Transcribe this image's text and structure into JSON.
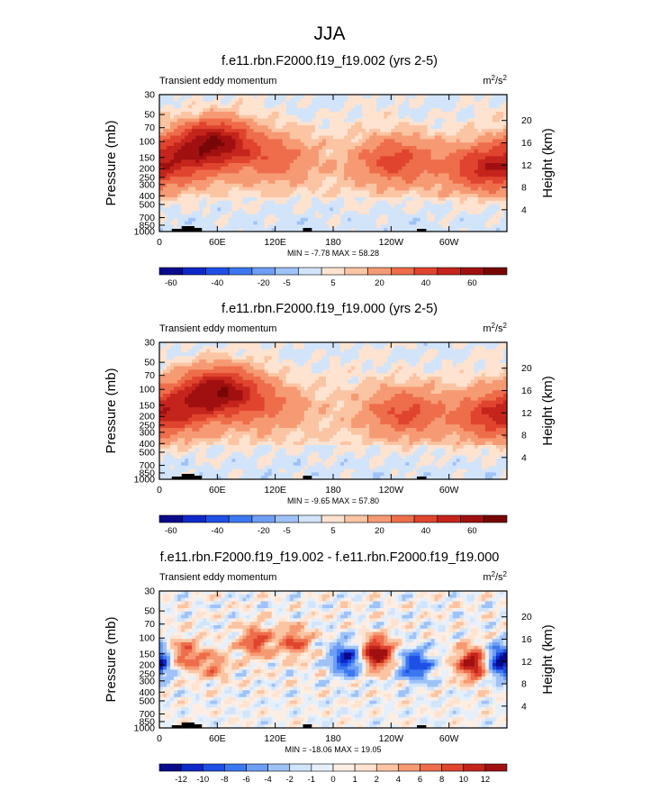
{
  "figure_title": "JJA",
  "chart_data": [
    {
      "type": "heatmap",
      "title": "f.e11.rbn.F2000.f19_f19.002 (yrs 2-5)",
      "subtitle_left": "Transient eddy momentum",
      "units": "m²/s²",
      "units_base": "m",
      "units_exp1": "2",
      "units_mid": "/s",
      "units_exp2": "2",
      "ylabel": "Pressure (mb)",
      "ylabel_right": "Height (km)",
      "x_ticks": [
        "0",
        "60E",
        "120E",
        "180",
        "120W",
        "60W"
      ],
      "y_ticks": [
        "30",
        "50",
        "70",
        "100",
        "150",
        "200",
        "250",
        "300",
        "400",
        "500",
        "700",
        "850",
        "1000"
      ],
      "y_ticks_right": [
        "20",
        "16",
        "12",
        "8",
        "4"
      ],
      "stats": "MIN =  -7.78  MAX =  58.28",
      "min": -7.78,
      "max": 58.28,
      "colorbar_labels": [
        "-60",
        "-40",
        "-20",
        "-5",
        "5",
        "20",
        "40",
        "60"
      ],
      "colorbar_colors": [
        "#0a0a8c",
        "#0f28c8",
        "#1e50e6",
        "#3c78f0",
        "#6e9ef5",
        "#9fc2f7",
        "#d2e4fa",
        "#fde3d0",
        "#fbc4a2",
        "#f69a74",
        "#ee6d4a",
        "#e0442e",
        "#c4241c",
        "#a01010",
        "#780606"
      ],
      "features": [
        {
          "lon": 20,
          "p": 160,
          "val": 26
        },
        {
          "lon": 58,
          "p": 100,
          "val": 52
        },
        {
          "lon": 120,
          "p": 150,
          "val": 20
        },
        {
          "lon": 245,
          "p": 160,
          "val": 30
        },
        {
          "lon": 336,
          "p": 200,
          "val": 34
        }
      ]
    },
    {
      "type": "heatmap",
      "title": "f.e11.rbn.F2000.f19_f19.000 (yrs 2-5)",
      "subtitle_left": "Transient eddy momentum",
      "units": "m²/s²",
      "units_base": "m",
      "units_exp1": "2",
      "units_mid": "/s",
      "units_exp2": "2",
      "ylabel": "Pressure (mb)",
      "ylabel_right": "Height (km)",
      "x_ticks": [
        "0",
        "60E",
        "120E",
        "180",
        "120W",
        "60W"
      ],
      "y_ticks": [
        "30",
        "50",
        "70",
        "100",
        "150",
        "200",
        "250",
        "300",
        "400",
        "500",
        "700",
        "850",
        "1000"
      ],
      "y_ticks_right": [
        "20",
        "16",
        "12",
        "8",
        "4"
      ],
      "stats": "MIN =  -9.65  MAX =  57.80",
      "min": -9.65,
      "max": 57.8,
      "colorbar_labels": [
        "-60",
        "-40",
        "-20",
        "-5",
        "5",
        "20",
        "40",
        "60"
      ],
      "colorbar_colors": [
        "#0a0a8c",
        "#0f28c8",
        "#1e50e6",
        "#3c78f0",
        "#6e9ef5",
        "#9fc2f7",
        "#d2e4fa",
        "#fde3d0",
        "#fbc4a2",
        "#f69a74",
        "#ee6d4a",
        "#e0442e",
        "#c4241c",
        "#a01010",
        "#780606"
      ],
      "features": [
        {
          "lon": 25,
          "p": 160,
          "val": 24
        },
        {
          "lon": 62,
          "p": 100,
          "val": 50
        },
        {
          "lon": 110,
          "p": 150,
          "val": 16
        },
        {
          "lon": 255,
          "p": 180,
          "val": 28
        },
        {
          "lon": 345,
          "p": 200,
          "val": 30
        }
      ]
    },
    {
      "type": "heatmap",
      "title": "f.e11.rbn.F2000.f19_f19.002 - f.e11.rbn.F2000.f19_f19.000",
      "subtitle_left": "Transient eddy momentum",
      "units": "m²/s²",
      "units_base": "m",
      "units_exp1": "2",
      "units_mid": "/s",
      "units_exp2": "2",
      "ylabel": "Pressure (mb)",
      "ylabel_right": "Height (km)",
      "x_ticks": [
        "0",
        "60E",
        "120E",
        "180",
        "120W",
        "60W"
      ],
      "y_ticks": [
        "30",
        "50",
        "70",
        "100",
        "150",
        "200",
        "250",
        "300",
        "400",
        "500",
        "700",
        "850",
        "1000"
      ],
      "y_ticks_right": [
        "20",
        "16",
        "12",
        "8",
        "4"
      ],
      "stats": "MIN = -18.06  MAX =  19.05",
      "min": -18.06,
      "max": 19.05,
      "colorbar_labels": [
        "-12",
        "-10",
        "-8",
        "-6",
        "-4",
        "-2",
        "-1",
        "0",
        "1",
        "2",
        "4",
        "6",
        "8",
        "10",
        "12"
      ],
      "colorbar_colors": [
        "#0a0a8c",
        "#0f28c8",
        "#1e50e6",
        "#3c78f0",
        "#6e9ef5",
        "#9fc2f7",
        "#d2e4fa",
        "#e6f0fb",
        "#fdeee4",
        "#fde3d0",
        "#fbc4a2",
        "#f69a74",
        "#ee6d4a",
        "#e0442e",
        "#c4241c",
        "#a01010"
      ],
      "features": [
        {
          "lon": 25,
          "p": 150,
          "val": 8
        },
        {
          "lon": 55,
          "p": 200,
          "val": 6
        },
        {
          "lon": 100,
          "p": 110,
          "val": 9
        },
        {
          "lon": 140,
          "p": 110,
          "val": 8
        },
        {
          "lon": 195,
          "p": 170,
          "val": -12
        },
        {
          "lon": 225,
          "p": 150,
          "val": 16
        },
        {
          "lon": 265,
          "p": 200,
          "val": -10
        },
        {
          "lon": 325,
          "p": 190,
          "val": 14
        },
        {
          "lon": 355,
          "p": 180,
          "val": -15
        }
      ]
    }
  ]
}
